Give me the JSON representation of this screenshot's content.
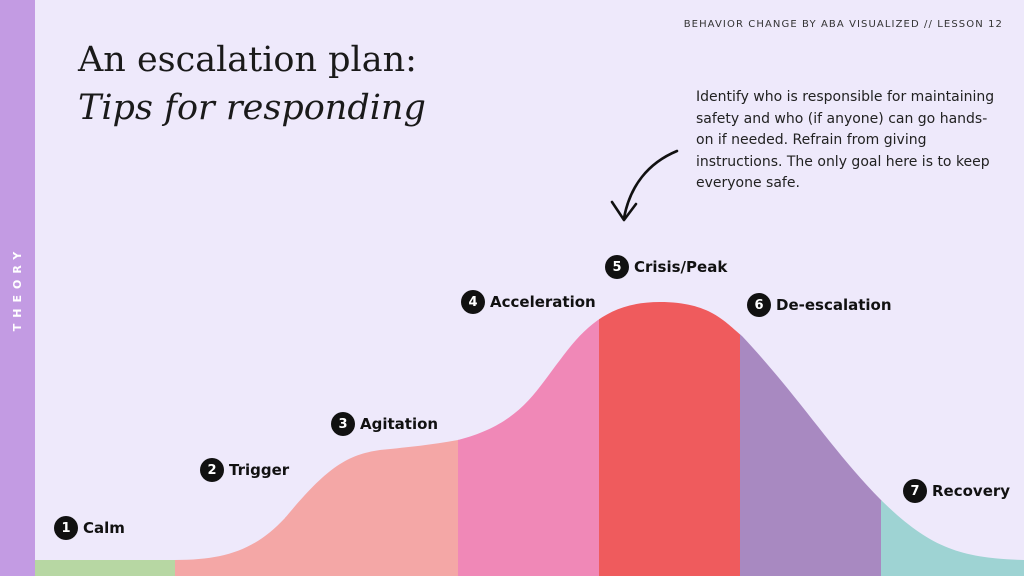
{
  "header": {
    "lesson": "BEHAVIOR CHANGE BY ABA VISUALIZED // LESSON 12"
  },
  "sidebar": {
    "label": "THEORY"
  },
  "title": {
    "line1": "An escalation plan:",
    "line2": "Tips for responding"
  },
  "callout": {
    "text": "Identify who is responsible for maintaining safety and who (if anyone) can go hands-on if needed. Refrain from giving instructions. The only goal here is to keep everyone safe."
  },
  "stages": [
    {
      "number": "1",
      "label": "Calm",
      "color": "#B7D7A3"
    },
    {
      "number": "2",
      "label": "Trigger",
      "color": "#F4A7A6"
    },
    {
      "number": "3",
      "label": "Agitation",
      "color": "#F4A7A6"
    },
    {
      "number": "4",
      "label": "Acceleration",
      "color": "#F088B7"
    },
    {
      "number": "5",
      "label": "Crisis/Peak",
      "color": "#EF5B5D"
    },
    {
      "number": "6",
      "label": "De-escalation",
      "color": "#A889C1"
    },
    {
      "number": "7",
      "label": "Recovery",
      "color": "#9ED3D3"
    }
  ],
  "colors": {
    "background": "#EEE9FB",
    "sidebar": "#C39BE3",
    "arrow": "#111111"
  }
}
